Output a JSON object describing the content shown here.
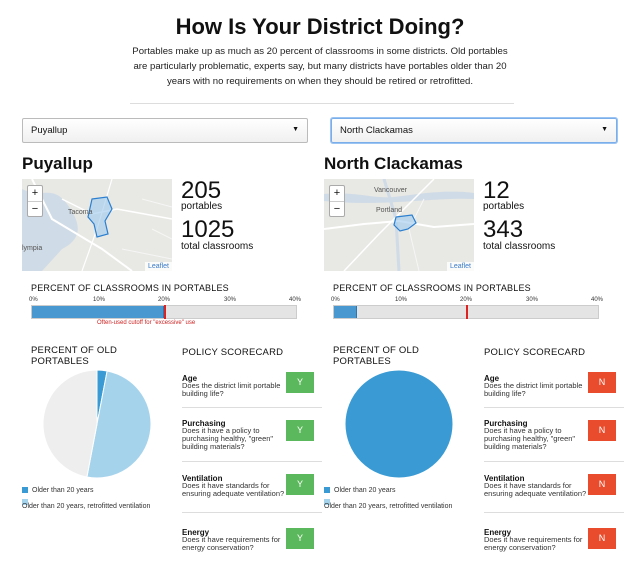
{
  "page": {
    "title": "How Is Your District Doing?",
    "intro": "Portables make up as much as 20 percent of classrooms in some districts. Old portables are particularly problematic, experts say, but many districts have portables older than 20 years with no requirements on when they should be retired or retrofitted."
  },
  "labels": {
    "portables": "portables",
    "total_classrooms": "total classrooms",
    "pct_classrooms_title": "PERCENT OF CLASSROOMS IN PORTABLES",
    "ticks": [
      "0%",
      "10%",
      "20%",
      "30%",
      "40%"
    ],
    "cutoff_note": "Often-used cutoff for \"excessive\" use",
    "pct_old_title": "PERCENT OF OLD PORTABLES",
    "policy_title": "POLICY SCORECARD",
    "legend_old": "Older than 20 years",
    "legend_retrofit": "Older than 20 years, retrofitted ventilation",
    "leaflet": "Leaflet",
    "zoom_in": "+",
    "zoom_out": "−"
  },
  "policies": [
    {
      "name": "Age",
      "question": "Does the district limit portable building life?"
    },
    {
      "name": "Purchasing",
      "question": "Does it have a policy to purchasing healthy, \"green\" building materials?"
    },
    {
      "name": "Ventilation",
      "question": "Does it have standards for ensuring adequate ventilation?"
    },
    {
      "name": "Energy",
      "question": "Does it have requirements for energy conservation?"
    }
  ],
  "colors": {
    "old": "#3a9bd4",
    "retrofit": "#a6d3ec",
    "bar_fill": "#4a98d0",
    "cutoff": "#dd2222",
    "yes": "#5cb85c",
    "no": "#e84c2c"
  },
  "districts": [
    {
      "select_value": "Puyallup",
      "name": "Puyallup",
      "portables": "205",
      "total_classrooms": "1025",
      "map_labels": [
        "Tacoma",
        "lympia"
      ],
      "pct_in_portables": 20,
      "pie": {
        "old": 3,
        "retrofit": 50,
        "other": 47
      },
      "scores": [
        "Y",
        "Y",
        "Y",
        "Y"
      ]
    },
    {
      "select_value": "North Clackamas",
      "name": "North Clackamas",
      "portables": "12",
      "total_classrooms": "343",
      "map_labels": [
        "Vancouver",
        "Portland"
      ],
      "pct_in_portables": 3.5,
      "pie": {
        "old": 100,
        "retrofit": 0,
        "other": 0
      },
      "scores": [
        "N",
        "N",
        "N",
        "N"
      ]
    }
  ]
}
